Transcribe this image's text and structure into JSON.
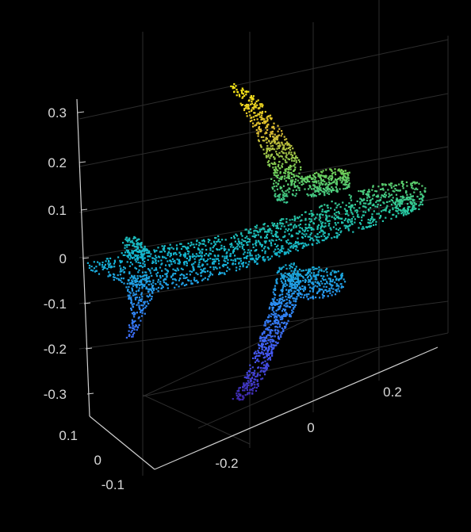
{
  "chart_data": {
    "type": "scatter",
    "subtype": "3d-point-cloud",
    "title": "",
    "xlabel": "",
    "ylabel": "",
    "zlabel": "",
    "background": "#000000",
    "grid": true,
    "colormap": "parula",
    "color_by": "z",
    "x_ticks": [
      "-0.2",
      "0",
      "0.2"
    ],
    "y_ticks": [
      "0.1",
      "0",
      "-0.1"
    ],
    "z_ticks": [
      "0.3",
      "0.2",
      "0.1",
      "0",
      "-0.1",
      "-0.2",
      "-0.3"
    ],
    "z_range": [
      -0.35,
      0.35
    ],
    "object": "airplane"
  }
}
